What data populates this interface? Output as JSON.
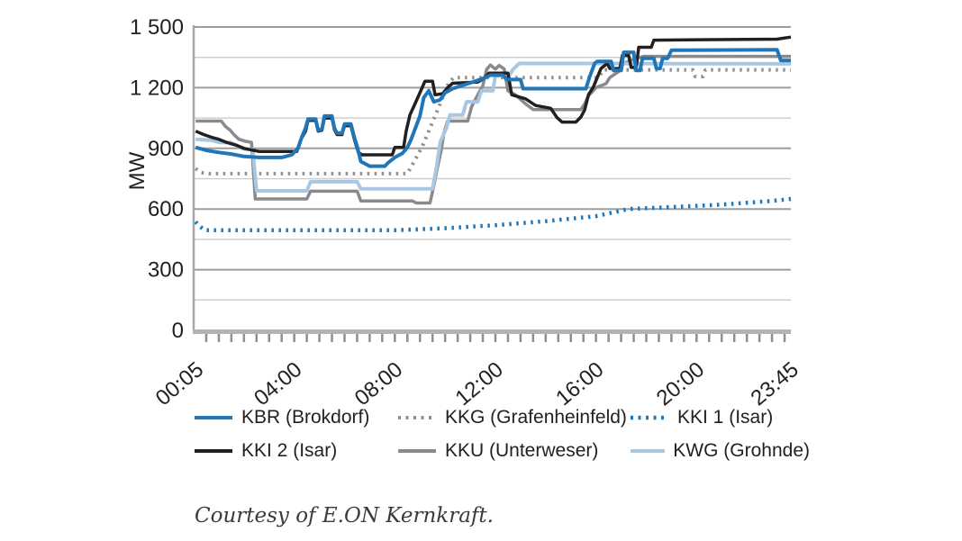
{
  "caption": "Courtesy of E.ON Kernkraft.",
  "colors": {
    "axis": "#a6a6a6",
    "axis_bottom": "#b3b3b3",
    "tick": "#8f8f8f",
    "grid_major": "#9d9d9d",
    "grid_minor": "#cfcfcf",
    "text": "#231f20"
  },
  "chart_data": {
    "type": "line",
    "title": "",
    "xlabel": "",
    "ylabel": "MW",
    "ylim": [
      0,
      1500
    ],
    "grid": "on",
    "legend_position": "below",
    "y_ticks": [
      {
        "v": 0,
        "label": "0"
      },
      {
        "v": 300,
        "label": "300"
      },
      {
        "v": 600,
        "label": "600"
      },
      {
        "v": 900,
        "label": "900"
      },
      {
        "v": 1200,
        "label": "1 200"
      },
      {
        "v": 1500,
        "label": "1 500"
      }
    ],
    "y_minor_step": 150,
    "x_range_hours": [
      0,
      23.75
    ],
    "x_minor_tick_hours": 0.5,
    "x_ticks": [
      {
        "t": 0.083,
        "label": "00:05"
      },
      {
        "t": 4,
        "label": "04:00"
      },
      {
        "t": 8,
        "label": "08:00"
      },
      {
        "t": 12,
        "label": "12:00"
      },
      {
        "t": 16,
        "label": "16:00"
      },
      {
        "t": 20,
        "label": "20:00"
      },
      {
        "t": 23.75,
        "label": "23:45"
      }
    ],
    "legend_order": [
      0,
      1,
      2,
      3,
      4,
      5
    ],
    "series": [
      {
        "name": "KBR (Brokdorf)",
        "color": "#2176b8",
        "dash": "solid",
        "width": 4,
        "z": 6,
        "points": [
          [
            0.08,
            905
          ],
          [
            0.5,
            890
          ],
          [
            1.0,
            880
          ],
          [
            1.5,
            872
          ],
          [
            2.0,
            860
          ],
          [
            2.6,
            855
          ],
          [
            3.5,
            855
          ],
          [
            3.9,
            868
          ],
          [
            4.15,
            900
          ],
          [
            4.3,
            955
          ],
          [
            4.45,
            1000
          ],
          [
            4.55,
            1045
          ],
          [
            4.85,
            1045
          ],
          [
            4.95,
            990
          ],
          [
            5.1,
            995
          ],
          [
            5.2,
            1060
          ],
          [
            5.5,
            1060
          ],
          [
            5.6,
            1000
          ],
          [
            5.7,
            975
          ],
          [
            5.9,
            975
          ],
          [
            6.0,
            1020
          ],
          [
            6.25,
            1020
          ],
          [
            6.4,
            950
          ],
          [
            6.5,
            910
          ],
          [
            6.65,
            835
          ],
          [
            7.0,
            812
          ],
          [
            7.6,
            812
          ],
          [
            7.75,
            830
          ],
          [
            8.0,
            855
          ],
          [
            8.3,
            875
          ],
          [
            8.5,
            905
          ],
          [
            8.65,
            945
          ],
          [
            8.8,
            995
          ],
          [
            9.0,
            1060
          ],
          [
            9.15,
            1150
          ],
          [
            9.35,
            1185
          ],
          [
            9.55,
            1130
          ],
          [
            9.8,
            1140
          ],
          [
            10.0,
            1175
          ],
          [
            10.3,
            1195
          ],
          [
            10.7,
            1212
          ],
          [
            11.1,
            1228
          ],
          [
            11.5,
            1245
          ],
          [
            11.8,
            1262
          ],
          [
            12.3,
            1262
          ],
          [
            12.45,
            1240
          ],
          [
            13.0,
            1240
          ],
          [
            13.1,
            1195
          ],
          [
            15.6,
            1195
          ],
          [
            15.75,
            1255
          ],
          [
            15.95,
            1320
          ],
          [
            16.05,
            1330
          ],
          [
            16.6,
            1330
          ],
          [
            16.7,
            1285
          ],
          [
            17.0,
            1285
          ],
          [
            17.1,
            1375
          ],
          [
            17.5,
            1375
          ],
          [
            17.6,
            1285
          ],
          [
            17.75,
            1285
          ],
          [
            17.85,
            1345
          ],
          [
            18.3,
            1345
          ],
          [
            18.4,
            1295
          ],
          [
            18.55,
            1295
          ],
          [
            18.65,
            1345
          ],
          [
            18.85,
            1345
          ],
          [
            19.0,
            1385
          ],
          [
            23.2,
            1388
          ],
          [
            23.35,
            1335
          ],
          [
            23.75,
            1335
          ]
        ]
      },
      {
        "name": "KKG (Grafenheinfeld)",
        "color": "#8f9093",
        "dash": "dotted",
        "width": 4,
        "z": 2,
        "points": [
          [
            0.08,
            800
          ],
          [
            0.3,
            780
          ],
          [
            0.6,
            775
          ],
          [
            8.5,
            775
          ],
          [
            8.7,
            820
          ],
          [
            8.9,
            865
          ],
          [
            9.1,
            912
          ],
          [
            9.25,
            955
          ],
          [
            9.4,
            1000
          ],
          [
            9.55,
            1045
          ],
          [
            9.7,
            1090
          ],
          [
            9.85,
            1135
          ],
          [
            10.0,
            1185
          ],
          [
            10.15,
            1225
          ],
          [
            10.35,
            1250
          ],
          [
            16.1,
            1250
          ],
          [
            16.3,
            1288
          ],
          [
            19.85,
            1288
          ],
          [
            19.95,
            1255
          ],
          [
            20.25,
            1255
          ],
          [
            20.35,
            1288
          ],
          [
            23.75,
            1288
          ]
        ]
      },
      {
        "name": "KKI 1 (Isar)",
        "color": "#1d79bd",
        "dash": "dotted",
        "width": 4.5,
        "z": 1,
        "points": [
          [
            0.08,
            537
          ],
          [
            0.2,
            518
          ],
          [
            0.45,
            495
          ],
          [
            8.0,
            495
          ],
          [
            10.0,
            505
          ],
          [
            12.0,
            520
          ],
          [
            14.0,
            540
          ],
          [
            16.0,
            565
          ],
          [
            17.3,
            600
          ],
          [
            19.0,
            610
          ],
          [
            21.0,
            622
          ],
          [
            23.0,
            640
          ],
          [
            23.75,
            650
          ]
        ]
      },
      {
        "name": "KKI 2 (Isar)",
        "color": "#231f20",
        "dash": "solid",
        "width": 3.5,
        "z": 5,
        "points": [
          [
            0.08,
            985
          ],
          [
            0.4,
            968
          ],
          [
            0.7,
            955
          ],
          [
            1.0,
            945
          ],
          [
            1.3,
            930
          ],
          [
            1.7,
            915
          ],
          [
            2.0,
            900
          ],
          [
            2.3,
            892
          ],
          [
            2.6,
            885
          ],
          [
            4.1,
            885
          ],
          [
            4.25,
            940
          ],
          [
            4.45,
            985
          ],
          [
            4.55,
            1038
          ],
          [
            4.85,
            1038
          ],
          [
            4.95,
            985
          ],
          [
            5.1,
            990
          ],
          [
            5.2,
            1050
          ],
          [
            5.5,
            1050
          ],
          [
            5.6,
            992
          ],
          [
            5.7,
            968
          ],
          [
            5.9,
            968
          ],
          [
            6.0,
            1012
          ],
          [
            6.25,
            1012
          ],
          [
            6.4,
            940
          ],
          [
            6.55,
            880
          ],
          [
            6.7,
            868
          ],
          [
            7.9,
            868
          ],
          [
            8.0,
            905
          ],
          [
            8.35,
            905
          ],
          [
            8.45,
            985
          ],
          [
            8.6,
            1065
          ],
          [
            8.8,
            1120
          ],
          [
            9.0,
            1175
          ],
          [
            9.2,
            1232
          ],
          [
            9.5,
            1232
          ],
          [
            9.6,
            1165
          ],
          [
            9.9,
            1170
          ],
          [
            10.1,
            1200
          ],
          [
            10.3,
            1222
          ],
          [
            11.3,
            1228
          ],
          [
            11.5,
            1242
          ],
          [
            11.75,
            1272
          ],
          [
            12.5,
            1272
          ],
          [
            12.65,
            1165
          ],
          [
            13.2,
            1145
          ],
          [
            13.6,
            1112
          ],
          [
            14.2,
            1098
          ],
          [
            14.45,
            1052
          ],
          [
            14.65,
            1030
          ],
          [
            15.2,
            1030
          ],
          [
            15.4,
            1055
          ],
          [
            15.55,
            1090
          ],
          [
            15.7,
            1165
          ],
          [
            15.9,
            1205
          ],
          [
            16.2,
            1295
          ],
          [
            16.45,
            1320
          ],
          [
            16.55,
            1295
          ],
          [
            16.95,
            1295
          ],
          [
            17.05,
            1360
          ],
          [
            17.3,
            1360
          ],
          [
            17.4,
            1300
          ],
          [
            17.6,
            1300
          ],
          [
            17.7,
            1400
          ],
          [
            18.2,
            1400
          ],
          [
            18.3,
            1435
          ],
          [
            23.2,
            1440
          ],
          [
            23.75,
            1450
          ]
        ]
      },
      {
        "name": "KKU (Unterweser)",
        "color": "#898a8d",
        "dash": "solid",
        "width": 3.5,
        "z": 3,
        "points": [
          [
            0.08,
            1035
          ],
          [
            1.1,
            1035
          ],
          [
            1.25,
            1010
          ],
          [
            1.45,
            990
          ],
          [
            1.6,
            968
          ],
          [
            1.8,
            945
          ],
          [
            2.05,
            935
          ],
          [
            2.3,
            930
          ],
          [
            2.45,
            650
          ],
          [
            4.5,
            650
          ],
          [
            4.65,
            688
          ],
          [
            6.5,
            688
          ],
          [
            6.65,
            640
          ],
          [
            8.7,
            640
          ],
          [
            8.85,
            630
          ],
          [
            9.4,
            630
          ],
          [
            9.55,
            715
          ],
          [
            9.7,
            808
          ],
          [
            9.85,
            895
          ],
          [
            9.95,
            975
          ],
          [
            10.1,
            1035
          ],
          [
            10.9,
            1035
          ],
          [
            11.05,
            1105
          ],
          [
            11.3,
            1165
          ],
          [
            11.5,
            1210
          ],
          [
            11.65,
            1290
          ],
          [
            11.8,
            1312
          ],
          [
            12.0,
            1292
          ],
          [
            12.15,
            1310
          ],
          [
            12.35,
            1292
          ],
          [
            12.5,
            1185
          ],
          [
            12.8,
            1165
          ],
          [
            13.2,
            1120
          ],
          [
            13.5,
            1092
          ],
          [
            15.4,
            1092
          ],
          [
            15.55,
            1120
          ],
          [
            15.7,
            1160
          ],
          [
            16.0,
            1200
          ],
          [
            16.4,
            1220
          ],
          [
            16.55,
            1250
          ],
          [
            16.9,
            1280
          ],
          [
            17.1,
            1320
          ],
          [
            17.5,
            1340
          ],
          [
            17.9,
            1355
          ],
          [
            23.75,
            1355
          ]
        ]
      },
      {
        "name": "KWG (Grohnde)",
        "color": "#a8c7e3",
        "dash": "solid",
        "width": 4,
        "z": 4,
        "points": [
          [
            0.08,
            945
          ],
          [
            0.7,
            940
          ],
          [
            1.0,
            930
          ],
          [
            1.5,
            928
          ],
          [
            1.7,
            915
          ],
          [
            1.95,
            898
          ],
          [
            2.35,
            893
          ],
          [
            2.5,
            690
          ],
          [
            4.5,
            690
          ],
          [
            4.65,
            735
          ],
          [
            6.5,
            735
          ],
          [
            6.65,
            700
          ],
          [
            9.5,
            700
          ],
          [
            9.65,
            800
          ],
          [
            9.8,
            930
          ],
          [
            10.05,
            1000
          ],
          [
            10.2,
            1065
          ],
          [
            10.7,
            1065
          ],
          [
            10.85,
            1130
          ],
          [
            11.3,
            1130
          ],
          [
            11.45,
            1185
          ],
          [
            11.9,
            1185
          ],
          [
            12.0,
            1260
          ],
          [
            12.55,
            1260
          ],
          [
            12.7,
            1290
          ],
          [
            12.95,
            1320
          ],
          [
            23.75,
            1318
          ]
        ]
      }
    ]
  }
}
